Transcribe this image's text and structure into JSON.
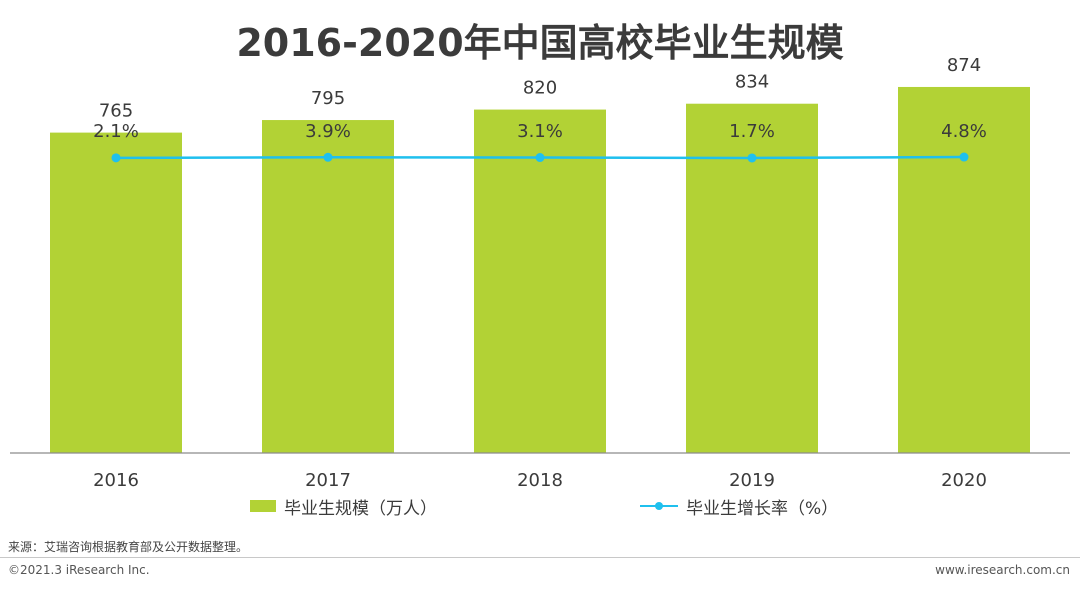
{
  "colors": {
    "bar": "#B2D235",
    "line": "#1FC0EE",
    "text": "#3b3b3b",
    "axis": "#8c8c8c"
  },
  "chart_data": {
    "type": "bar",
    "title": "2016-2020年中国高校毕业生规模",
    "categories": [
      "2016",
      "2017",
      "2018",
      "2019",
      "2020"
    ],
    "series": [
      {
        "name": "毕业生规模（万人）",
        "type": "bar",
        "values": [
          765,
          795,
          820,
          834,
          874
        ],
        "labels": [
          "765",
          "795",
          "820",
          "834",
          "874"
        ]
      },
      {
        "name": "毕业生增长率（%）",
        "type": "line",
        "values": [
          2.1,
          3.9,
          3.1,
          1.7,
          4.8
        ],
        "labels": [
          "2.1%",
          "3.9%",
          "3.1%",
          "1.7%",
          "4.8%"
        ]
      }
    ],
    "ylim": [
      0,
      1010
    ],
    "legend": "bottom"
  },
  "footer": {
    "source": "来源：艾瑞咨询根据教育部及公开数据整理。",
    "copyright": "©2021.3 iResearch Inc.",
    "website": "www.iresearch.com.cn"
  }
}
